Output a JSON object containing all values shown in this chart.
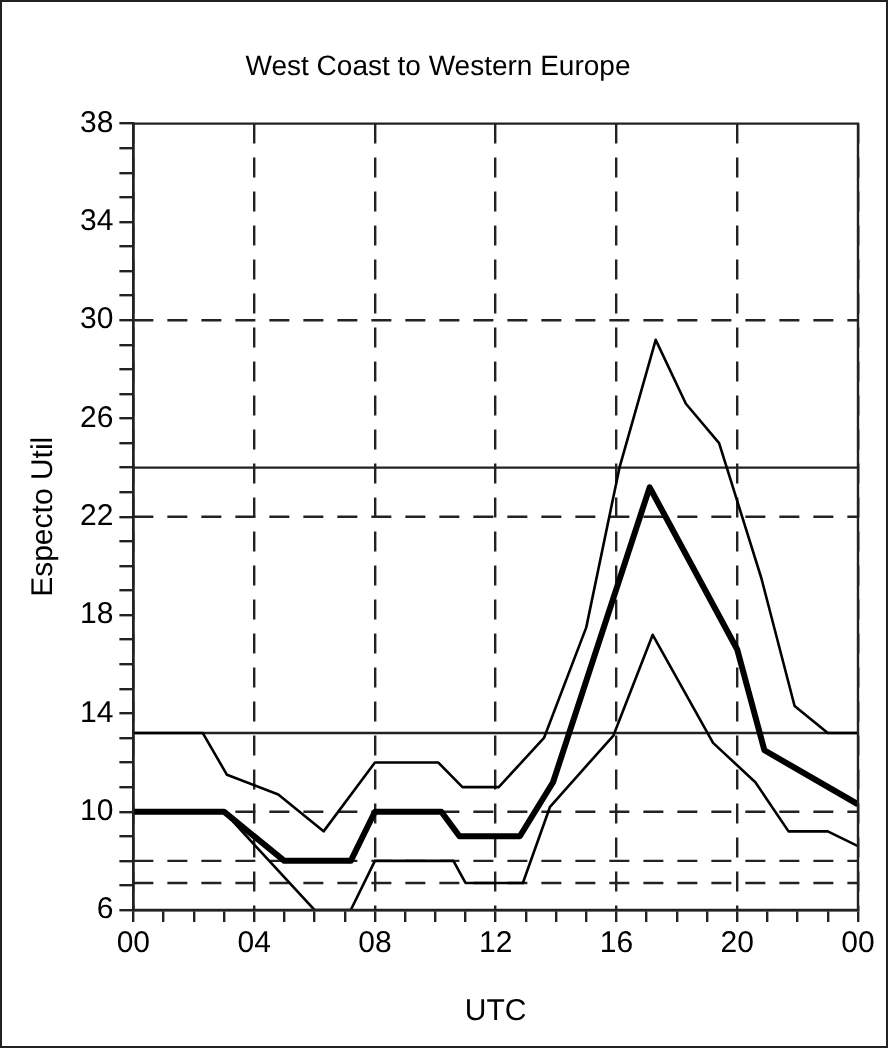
{
  "chart_data": {
    "type": "line",
    "title": "West Coast to Western Europe",
    "xlabel": "UTC",
    "ylabel": "Especto Util",
    "xlim": [
      0,
      24
    ],
    "xticks": [
      {
        "value": 0,
        "label": "00"
      },
      {
        "value": 1,
        "label": null
      },
      {
        "value": 2,
        "label": null
      },
      {
        "value": 3,
        "label": null
      },
      {
        "value": 4,
        "label": "04"
      },
      {
        "value": 5,
        "label": null
      },
      {
        "value": 6,
        "label": null
      },
      {
        "value": 7,
        "label": null
      },
      {
        "value": 8,
        "label": "08"
      },
      {
        "value": 9,
        "label": null
      },
      {
        "value": 10,
        "label": null
      },
      {
        "value": 11,
        "label": null
      },
      {
        "value": 12,
        "label": "12"
      },
      {
        "value": 13,
        "label": null
      },
      {
        "value": 14,
        "label": null
      },
      {
        "value": 15,
        "label": null
      },
      {
        "value": 16,
        "label": "16"
      },
      {
        "value": 17,
        "label": null
      },
      {
        "value": 18,
        "label": null
      },
      {
        "value": 19,
        "label": null
      },
      {
        "value": 20,
        "label": "20"
      },
      {
        "value": 21,
        "label": null
      },
      {
        "value": 22,
        "label": null
      },
      {
        "value": 23,
        "label": null
      },
      {
        "value": 24,
        "label": "00"
      }
    ],
    "ylim": [
      6,
      38
    ],
    "yticks": [
      6,
      {
        "value": 7,
        "label": null
      },
      {
        "value": 8,
        "label": null
      },
      {
        "value": 9,
        "label": null
      },
      10,
      {
        "value": 11,
        "label": null
      },
      {
        "value": 12,
        "label": null
      },
      {
        "value": 13,
        "label": null
      },
      14,
      {
        "value": 15,
        "label": null
      },
      {
        "value": 16,
        "label": null
      },
      {
        "value": 17,
        "label": null
      },
      18,
      {
        "value": 19,
        "label": null
      },
      {
        "value": 20,
        "label": null
      },
      {
        "value": 21,
        "label": null
      },
      22,
      {
        "value": 23,
        "label": null
      },
      {
        "value": 24,
        "label": null
      },
      {
        "value": 25,
        "label": null
      },
      26,
      {
        "value": 27,
        "label": null
      },
      {
        "value": 28,
        "label": null
      },
      {
        "value": 29,
        "label": null
      },
      30,
      {
        "value": 31,
        "label": null
      },
      {
        "value": 32,
        "label": null
      },
      {
        "value": 33,
        "label": null
      },
      34,
      {
        "value": 35,
        "label": null
      },
      {
        "value": 36,
        "label": null
      },
      {
        "value": 37,
        "label": null
      },
      38
    ],
    "grid": "x",
    "legend": false,
    "marker": "none",
    "line_style": "solid",
    "series": [
      {
        "color": "#000000",
        "x": [
          0,
          2.3,
          3.1,
          4.8,
          6.3,
          8,
          10.1,
          10.9,
          12.1,
          13.6,
          15,
          16.1,
          17.3,
          18.3,
          19.4,
          20.8,
          21.9,
          23,
          24
        ],
        "values": [
          13.2,
          13.2,
          11.5,
          10.7,
          9.2,
          12,
          12,
          11,
          11,
          13,
          17.5,
          24,
          29.2,
          26.6,
          25,
          19.5,
          14.3,
          13.2,
          13.2
        ]
      },
      {
        "color": "#000000",
        "x": [
          0,
          3,
          5,
          7.2,
          8,
          10.2,
          10.8,
          12.8,
          13.9,
          17.1,
          20,
          20.9,
          24
        ],
        "values": [
          10,
          10,
          8,
          8,
          10,
          10,
          9,
          9,
          11.2,
          23.2,
          16.6,
          12.5,
          10.3
        ]
      },
      {
        "color": "#000000",
        "x": [
          0,
          3,
          6,
          7.2,
          8,
          10.6,
          11,
          12.9,
          13.8,
          15.9,
          17.2,
          19.2,
          20.6,
          21.7,
          23,
          24
        ],
        "values": [
          10,
          10,
          6,
          6,
          8,
          8,
          7.1,
          7.1,
          10.2,
          13.1,
          17.2,
          12.8,
          11.2,
          9.2,
          9.2,
          8.6
        ]
      }
    ],
    "ref_lines": [
      {
        "axis": "y",
        "value": 30,
        "line_style": "dashed"
      },
      {
        "axis": "y",
        "value": 24,
        "line_style": "solid"
      },
      {
        "axis": "y",
        "value": 22,
        "line_style": "dashed"
      },
      {
        "axis": "y",
        "value": 13.2,
        "line_style": "solid"
      },
      {
        "axis": "y",
        "value": 10,
        "line_style": "dashed"
      },
      {
        "axis": "y",
        "value": 8,
        "line_style": "dashed"
      },
      {
        "axis": "y",
        "value": 7.1,
        "line_style": "dashed"
      }
    ]
  }
}
